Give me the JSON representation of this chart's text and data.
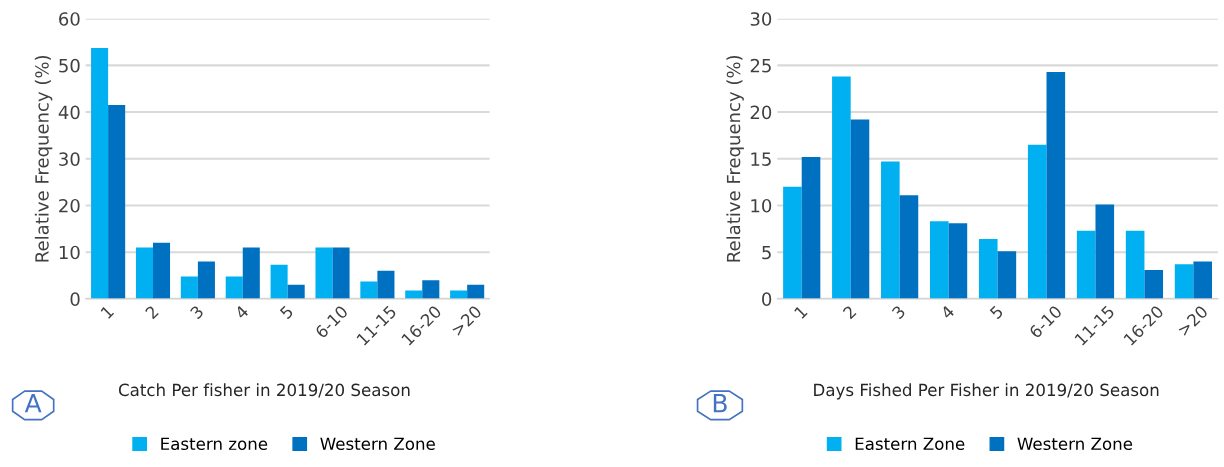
{
  "chart_data": [
    {
      "type": "bar",
      "title": "Catch Per fisher in 2019/20 Season",
      "ylabel": "Relative Frequency (%)",
      "annotations": [
        "A"
      ],
      "categories": [
        "1",
        "2",
        "3",
        "4",
        "5",
        "6-10",
        "11-15",
        "16-20",
        ">20"
      ],
      "series": [
        {
          "name": "Eastern zone",
          "color": "#00b0f0",
          "values": [
            53.7,
            11,
            4.8,
            4.8,
            7.3,
            11,
            3.7,
            1.8,
            1.8
          ]
        },
        {
          "name": "Western Zone",
          "color": "#0070c0",
          "values": [
            41.5,
            12,
            8,
            11,
            3,
            11,
            6,
            4,
            3
          ]
        }
      ],
      "ylim": [
        0,
        60
      ],
      "yticks": [
        0,
        10,
        20,
        30,
        40,
        50,
        60
      ],
      "grid": "y",
      "legend": "bottom"
    },
    {
      "type": "bar",
      "title": "Days Fished Per Fisher in 2019/20 Season",
      "ylabel": "Relative Frequency (%)",
      "annotations": [
        "B"
      ],
      "categories": [
        "1",
        "2",
        "3",
        "4",
        "5",
        "6-10",
        "11-15",
        "16-20",
        ">20"
      ],
      "series": [
        {
          "name": "Eastern Zone",
          "color": "#00b0f0",
          "values": [
            12,
            23.8,
            14.7,
            8.3,
            6.4,
            16.5,
            7.3,
            7.3,
            3.7
          ]
        },
        {
          "name": "Western Zone",
          "color": "#0070c0",
          "values": [
            15.2,
            19.2,
            11.1,
            8.1,
            5.1,
            24.3,
            10.1,
            3.1,
            4.0
          ]
        }
      ],
      "ylim": [
        0,
        30
      ],
      "yticks": [
        0,
        5,
        10,
        15,
        20,
        25,
        30
      ],
      "grid": "y",
      "legend": "bottom"
    }
  ]
}
